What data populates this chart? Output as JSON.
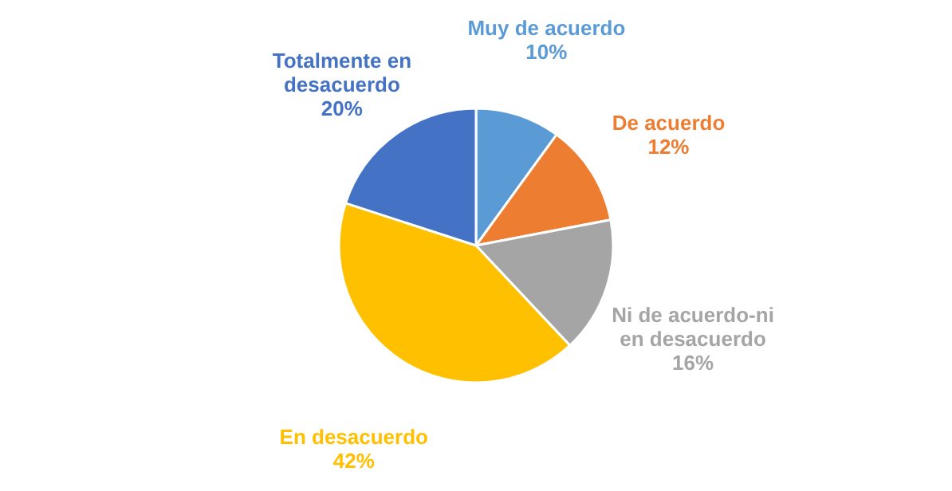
{
  "chart_data": {
    "type": "pie",
    "categories": [
      "Muy de acuerdo",
      "De acuerdo",
      "Ni de acuerdo-ni en desacuerdo",
      "En desacuerdo",
      "Totalmente en desacuerdo"
    ],
    "values": [
      10,
      12,
      16,
      42,
      20
    ],
    "colors": [
      "#5b9bd5",
      "#ed7d31",
      "#a5a5a5",
      "#ffc000",
      "#4472c4"
    ],
    "value_labels": [
      "10%",
      "12%",
      "16%",
      "42%",
      "20%"
    ]
  }
}
